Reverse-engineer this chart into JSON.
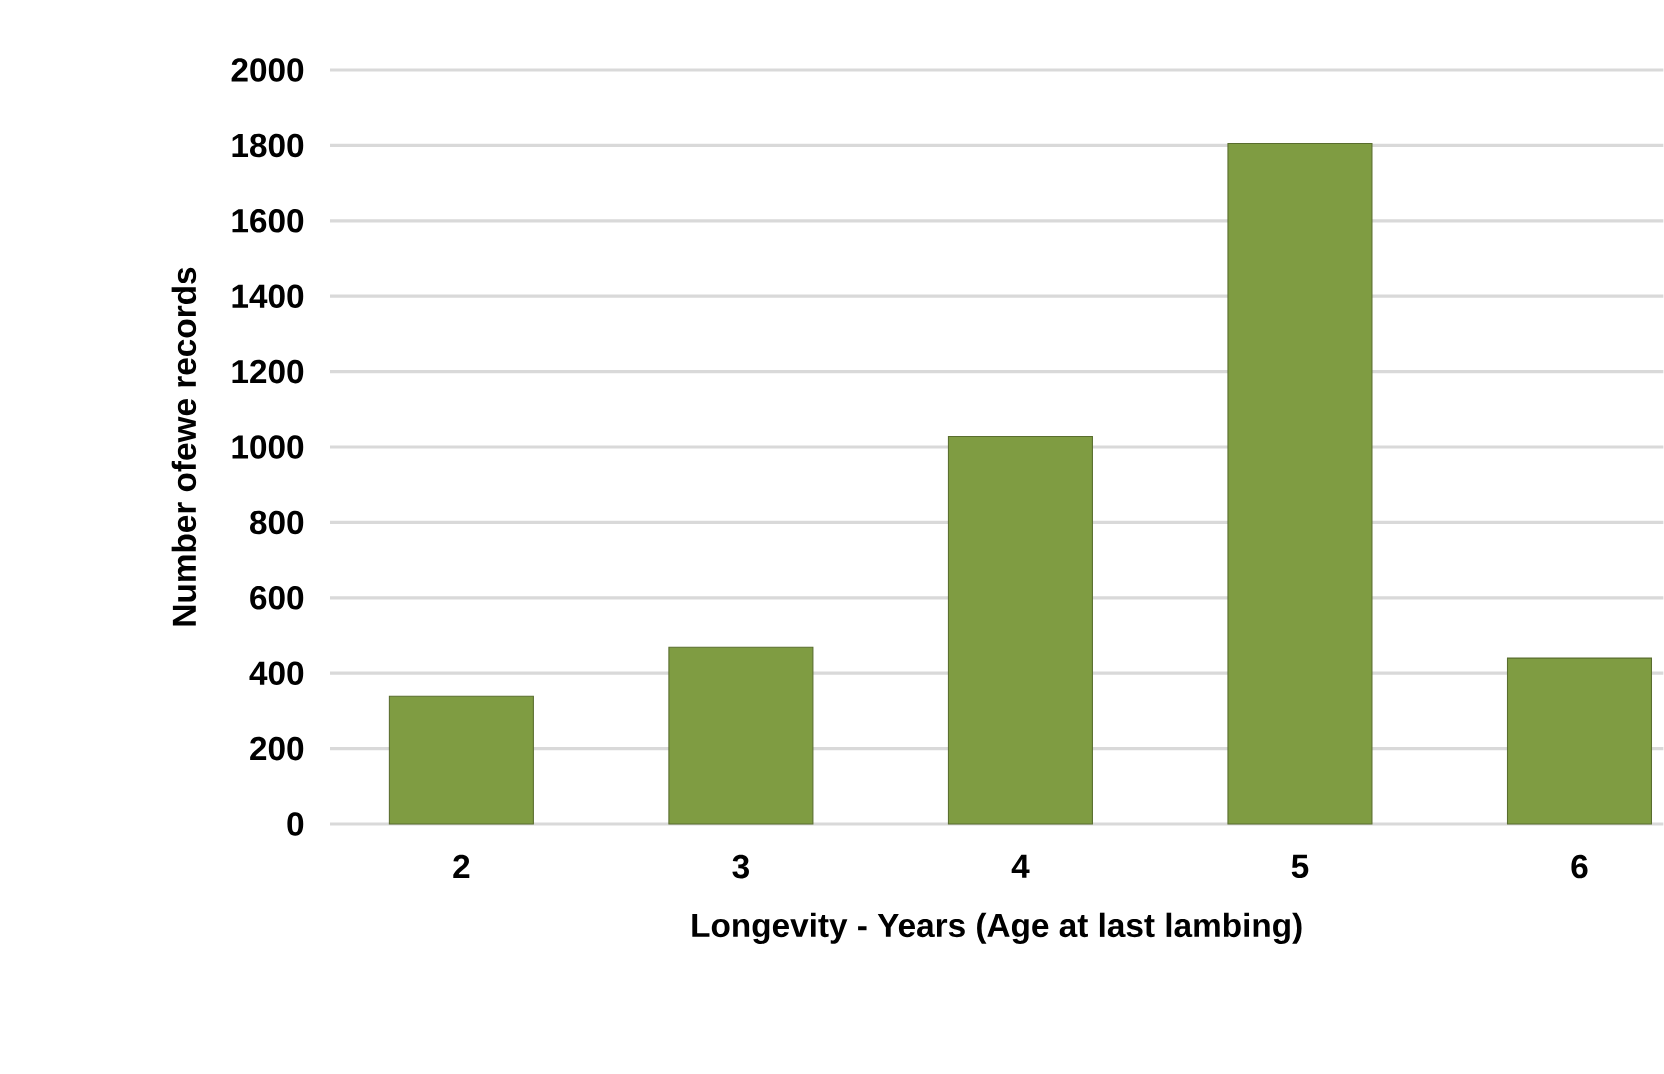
{
  "chart_data": {
    "type": "bar",
    "xlabel": "Longevity - Years (Age at last lambing)",
    "ylabel": "Number ofewe records",
    "categories": [
      "2",
      "3",
      "4",
      "5",
      "6"
    ],
    "values": [
      339,
      469,
      1028,
      1805,
      440
    ],
    "color": "#7f9c42",
    "ylim": [
      0,
      2000
    ],
    "yticks": [
      0,
      200,
      400,
      600,
      800,
      1000,
      1200,
      1400,
      1600,
      1800,
      2000
    ],
    "grid": "y"
  }
}
